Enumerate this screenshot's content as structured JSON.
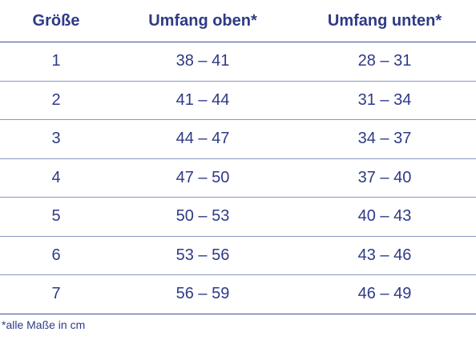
{
  "table": {
    "headers": [
      "Größe",
      "Umfang oben*",
      "Umfang unten*"
    ],
    "rows": [
      [
        "1",
        "38 – 41",
        "28 – 31"
      ],
      [
        "2",
        "41 – 44",
        "31 – 34"
      ],
      [
        "3",
        "44 – 47",
        "34 – 37"
      ],
      [
        "4",
        "47 – 50",
        "37 – 40"
      ],
      [
        "5",
        "50 – 53",
        "40 – 43"
      ],
      [
        "6",
        "53 – 56",
        "43 – 46"
      ],
      [
        "7",
        "56 – 59",
        "46 – 49"
      ]
    ]
  },
  "footnote": "*alle Maße in cm",
  "colors": {
    "text": "#2e3a86",
    "rule": "#3f4c99",
    "row_rule": "#8d95c2",
    "background": "#ffffff"
  }
}
